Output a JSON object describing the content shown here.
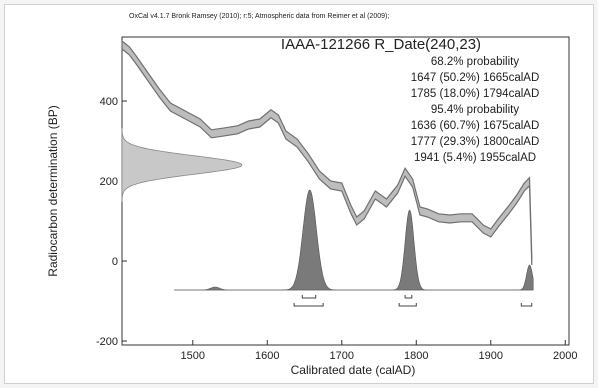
{
  "chart_data": {
    "type": "line",
    "header_note": "OxCal v4.1.7 Bronk Ramsey (2010); r:5; Atmospheric data from Reimer et al (2009);",
    "title": "IAAA-121266 R_Date(240,23)",
    "xlabel": "Calibrated date (calAD)",
    "ylabel": "Radiocarbon determination (BP)",
    "xlim": [
      1405,
      2005
    ],
    "ylim": [
      -210,
      560
    ],
    "x_ticks": [
      1500,
      1600,
      1700,
      1800,
      1900,
      2000
    ],
    "y_ticks": [
      -200,
      0,
      200,
      400
    ],
    "annotations": [
      "68.2% probability",
      "1647 (50.2%) 1665calAD",
      "1785 (18.0%) 1794calAD",
      "95.4% probability",
      "1636 (60.7%) 1675calAD",
      "1777 (29.3%) 1800calAD",
      "1941 (5.4%) 1955calAD"
    ],
    "calibration_curve": {
      "x": [
        1405,
        1415,
        1425,
        1440,
        1455,
        1470,
        1490,
        1510,
        1525,
        1540,
        1560,
        1575,
        1590,
        1605,
        1615,
        1625,
        1640,
        1655,
        1670,
        1685,
        1700,
        1712,
        1720,
        1730,
        1745,
        1760,
        1775,
        1785,
        1795,
        1805,
        1815,
        1830,
        1845,
        1860,
        1875,
        1890,
        1900,
        1910,
        1925,
        1935,
        1945,
        1952,
        1955
      ],
      "y": [
        540,
        525,
        500,
        460,
        420,
        385,
        365,
        345,
        318,
        322,
        328,
        340,
        345,
        368,
        355,
        315,
        295,
        258,
        215,
        190,
        185,
        130,
        100,
        115,
        165,
        145,
        180,
        222,
        195,
        125,
        120,
        108,
        105,
        108,
        108,
        80,
        70,
        95,
        130,
        155,
        185,
        198,
        0
      ],
      "band_halfwidth": 10
    },
    "radiocarbon_date": {
      "mean": 240,
      "sigma": 23
    },
    "calibrated_peaks": [
      {
        "center": 1657,
        "width": 9,
        "height": 1.0
      },
      {
        "center": 1791,
        "width": 6,
        "height": 0.8
      },
      {
        "center": 1952,
        "width": 4,
        "height": 0.25
      },
      {
        "center": 1530,
        "width": 6,
        "height": 0.03
      }
    ],
    "range_68": [
      [
        1647,
        1665
      ],
      [
        1785,
        1794
      ]
    ],
    "range_95": [
      [
        1636,
        1675
      ],
      [
        1777,
        1800
      ],
      [
        1941,
        1955
      ]
    ],
    "colors": {
      "curve": "#707070",
      "band": "#bdbdbd",
      "fill": "#7a7a7a",
      "date_fill": "#c8c8c8"
    }
  }
}
